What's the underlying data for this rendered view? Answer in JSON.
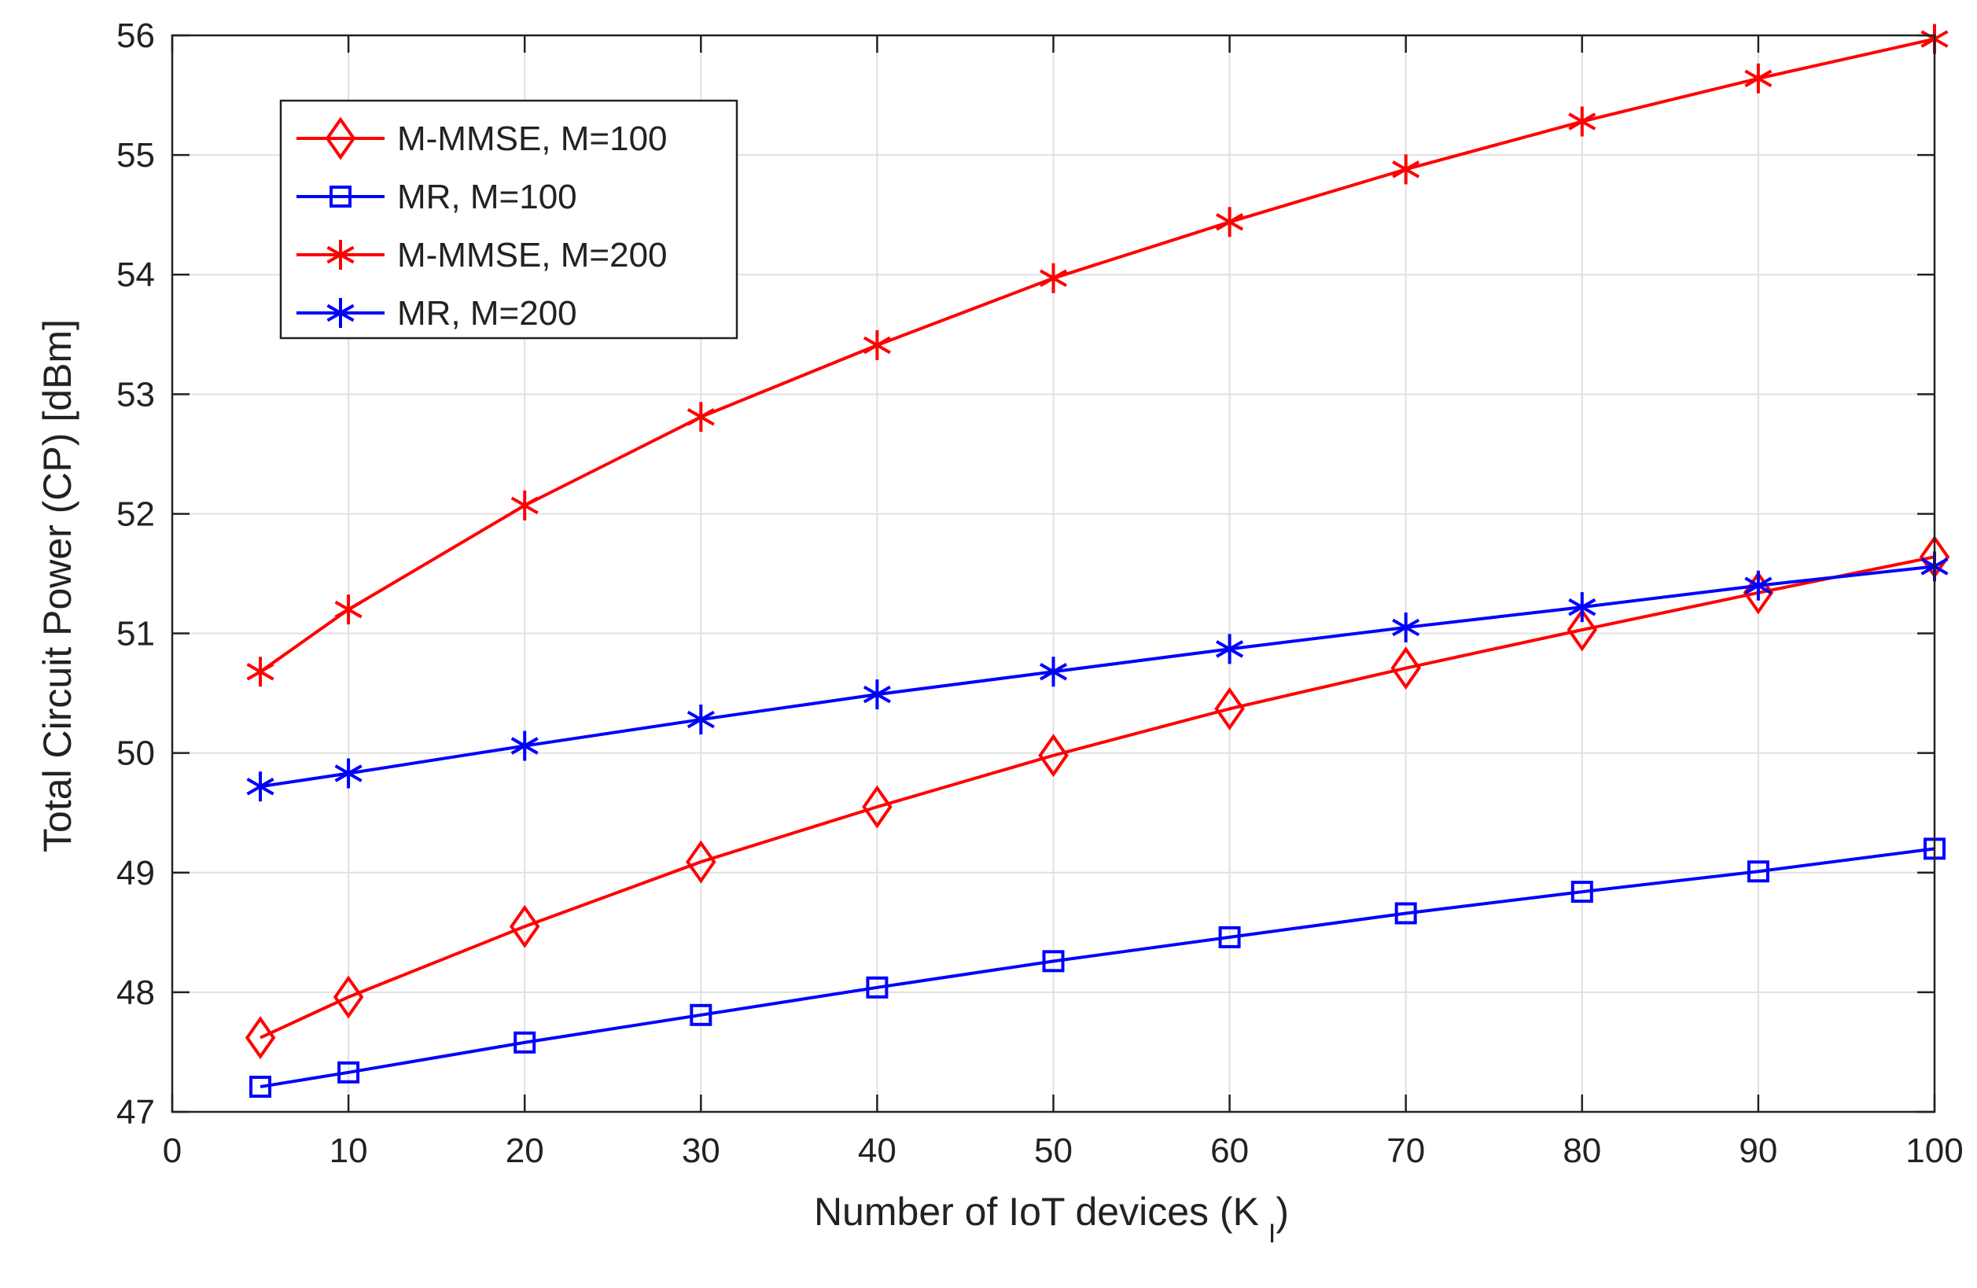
{
  "chart_data": {
    "type": "line",
    "title": "",
    "xlabel": "Number of IoT devices (K",
    "xlabel_subscript": "I",
    "xlabel_suffix": ")",
    "ylabel": "Total Circuit Power (CP) [dBm]",
    "xlim": [
      0,
      100
    ],
    "ylim": [
      47,
      56
    ],
    "xticks": [
      0,
      10,
      20,
      30,
      40,
      50,
      60,
      70,
      80,
      90,
      100
    ],
    "yticks": [
      47,
      48,
      49,
      50,
      51,
      52,
      53,
      54,
      55,
      56
    ],
    "grid": true,
    "legend_position": "top-left",
    "x": [
      5,
      10,
      20,
      30,
      40,
      50,
      60,
      70,
      80,
      90,
      100
    ],
    "series": [
      {
        "name": "M-MMSE, M=100",
        "color": "#ff0000",
        "marker": "diamond",
        "values": [
          47.62,
          47.96,
          48.55,
          49.09,
          49.55,
          49.98,
          50.37,
          50.71,
          51.03,
          51.34,
          51.64
        ]
      },
      {
        "name": "MR, M=100",
        "color": "#0000ff",
        "marker": "square",
        "values": [
          47.21,
          47.33,
          47.58,
          47.81,
          48.04,
          48.26,
          48.46,
          48.66,
          48.84,
          49.01,
          49.2
        ]
      },
      {
        "name": "M-MMSE, M=200",
        "color": "#ff0000",
        "marker": "asterisk",
        "values": [
          50.68,
          51.2,
          52.07,
          52.81,
          53.41,
          53.97,
          54.44,
          54.88,
          55.28,
          55.64,
          55.97
        ]
      },
      {
        "name": "MR, M=200",
        "color": "#0000ff",
        "marker": "asterisk",
        "values": [
          49.72,
          49.83,
          50.06,
          50.28,
          50.49,
          50.68,
          50.87,
          51.05,
          51.22,
          51.4,
          51.56
        ]
      }
    ]
  }
}
